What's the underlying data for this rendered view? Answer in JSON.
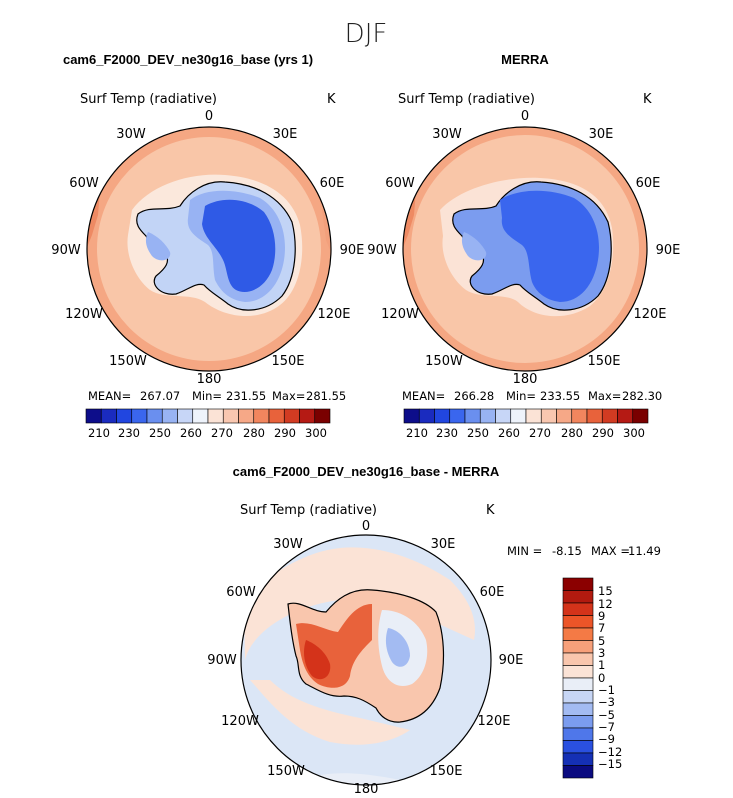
{
  "page": {
    "season": "DJF"
  },
  "panels": [
    {
      "title": "cam6_F2000_DEV_ne30g16_base (yrs 1)",
      "field_label": "Surf Temp (radiative)",
      "units": "K",
      "lon_labels": [
        "0",
        "30E",
        "60E",
        "90E",
        "120E",
        "150E",
        "180",
        "150W",
        "120W",
        "90W",
        "60W",
        "30W"
      ],
      "stats": {
        "mean_label": "MEAN=",
        "mean": "267.07",
        "min_label": "Min=",
        "min": "231.55",
        "max_label": "Max=",
        "max": "281.55"
      },
      "colorbar_labels": [
        "210",
        "230",
        "250",
        "260",
        "270",
        "280",
        "290",
        "300"
      ]
    },
    {
      "title": "MERRA",
      "field_label": "Surf Temp (radiative)",
      "units": "K",
      "lon_labels": [
        "0",
        "30E",
        "60E",
        "90E",
        "120E",
        "150E",
        "180",
        "150W",
        "120W",
        "90W",
        "60W",
        "30W"
      ],
      "stats": {
        "mean_label": "MEAN=",
        "mean": "266.28",
        "min_label": "Min=",
        "min": "233.55",
        "max_label": "Max=",
        "max": "282.30"
      },
      "colorbar_labels": [
        "210",
        "230",
        "250",
        "260",
        "270",
        "280",
        "290",
        "300"
      ]
    },
    {
      "title": "cam6_F2000_DEV_ne30g16_base - MERRA",
      "field_label": "Surf Temp (radiative)",
      "units": "K",
      "lon_labels": [
        "0",
        "30E",
        "60E",
        "90E",
        "120E",
        "150E",
        "180",
        "150W",
        "120W",
        "90W",
        "60W",
        "30W"
      ],
      "minmax": {
        "min_label": "MIN =",
        "min": "-8.15",
        "max_label": "MAX =",
        "max": "11.49"
      },
      "colorbar_labels": [
        "15",
        "12",
        "9",
        "7",
        "5",
        "3",
        "1",
        "0",
        "−1",
        "−3",
        "−5",
        "−7",
        "−9",
        "−12",
        "−15"
      ]
    }
  ],
  "colors": {
    "abs_scale": [
      "#0d0d8a",
      "#1a2bbf",
      "#2146e0",
      "#3a66ee",
      "#6a8fef",
      "#98b3f3",
      "#c7d6f7",
      "#eef3fb",
      "#fbe3d6",
      "#f9c7b0",
      "#f6a887",
      "#f2865e",
      "#e8623b",
      "#d23b22",
      "#b51a14",
      "#7a0000"
    ],
    "diff_scale_top_down": [
      "#8b0000",
      "#b21a0f",
      "#d4331a",
      "#ec5528",
      "#f47a45",
      "#f7a07a",
      "#f9c6ad",
      "#fbe3d6",
      "#e9eef7",
      "#c7d6f5",
      "#a3bbf2",
      "#7b9cef",
      "#4f77ea",
      "#2a50e0",
      "#1530b5",
      "#0b0b80"
    ],
    "ocean_warm": "#f9c6a8",
    "ocean_warmer": "#f5a783",
    "ocean_edge": "#ee8a63",
    "diff_ocean": "#dbe6f6",
    "diff_warm": "#fbe3d6"
  }
}
